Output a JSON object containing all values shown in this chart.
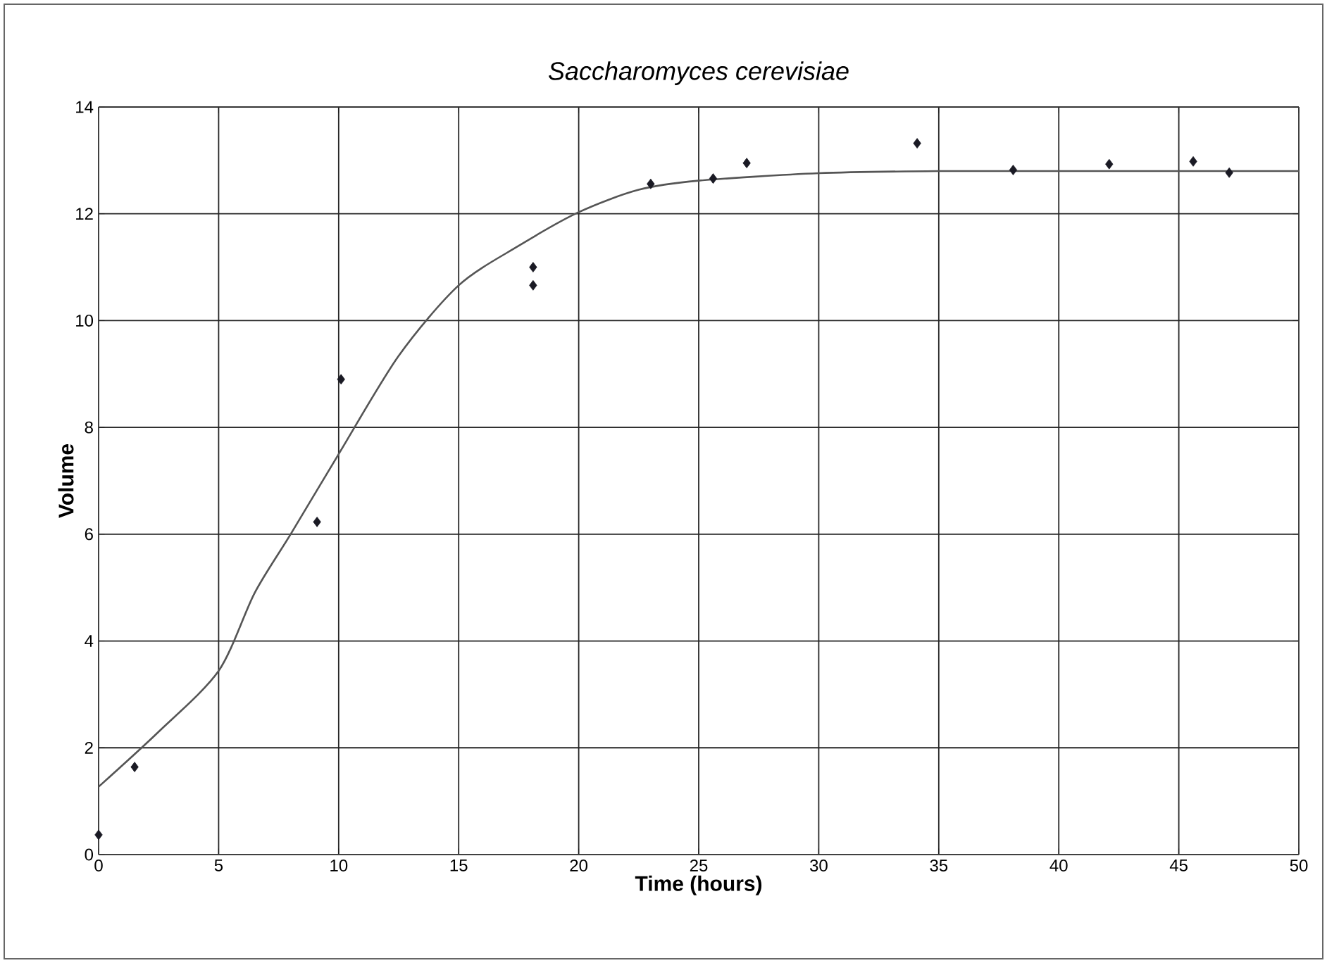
{
  "chart_data": {
    "type": "scatter",
    "title": "Saccharomyces cerevisiae",
    "xlabel": "Time (hours)",
    "ylabel": "Volume",
    "xlim": [
      0,
      50
    ],
    "ylim": [
      0,
      14
    ],
    "xticks": [
      0,
      5,
      10,
      15,
      20,
      25,
      30,
      35,
      40,
      45,
      50
    ],
    "yticks": [
      0,
      2,
      4,
      6,
      8,
      10,
      12,
      14
    ],
    "grid": true,
    "marker": "diamond",
    "series": [
      {
        "color": "#1a1a24",
        "x": [
          0,
          1.5,
          9.1,
          10.1,
          18.1,
          18.1,
          23,
          25.6,
          27,
          34.1,
          38.1,
          42.1,
          45.6,
          47.1
        ],
        "values": [
          0.37,
          1.64,
          6.23,
          8.9,
          11.0,
          10.66,
          12.56,
          12.66,
          12.95,
          13.32,
          12.82,
          12.93,
          12.98,
          12.77
        ]
      },
      {
        "type": "line",
        "color": "#555555",
        "marker": "none",
        "x": [
          0,
          2.5,
          5,
          6.5,
          8,
          10,
          12.5,
          15,
          17.5,
          20,
          22.5,
          25,
          30,
          35,
          40,
          50
        ],
        "values": [
          1.27,
          2.3,
          3.44,
          4.9,
          6.0,
          7.5,
          9.34,
          10.66,
          11.4,
          12.03,
          12.45,
          12.62,
          12.76,
          12.8,
          12.8,
          12.8
        ]
      }
    ]
  }
}
